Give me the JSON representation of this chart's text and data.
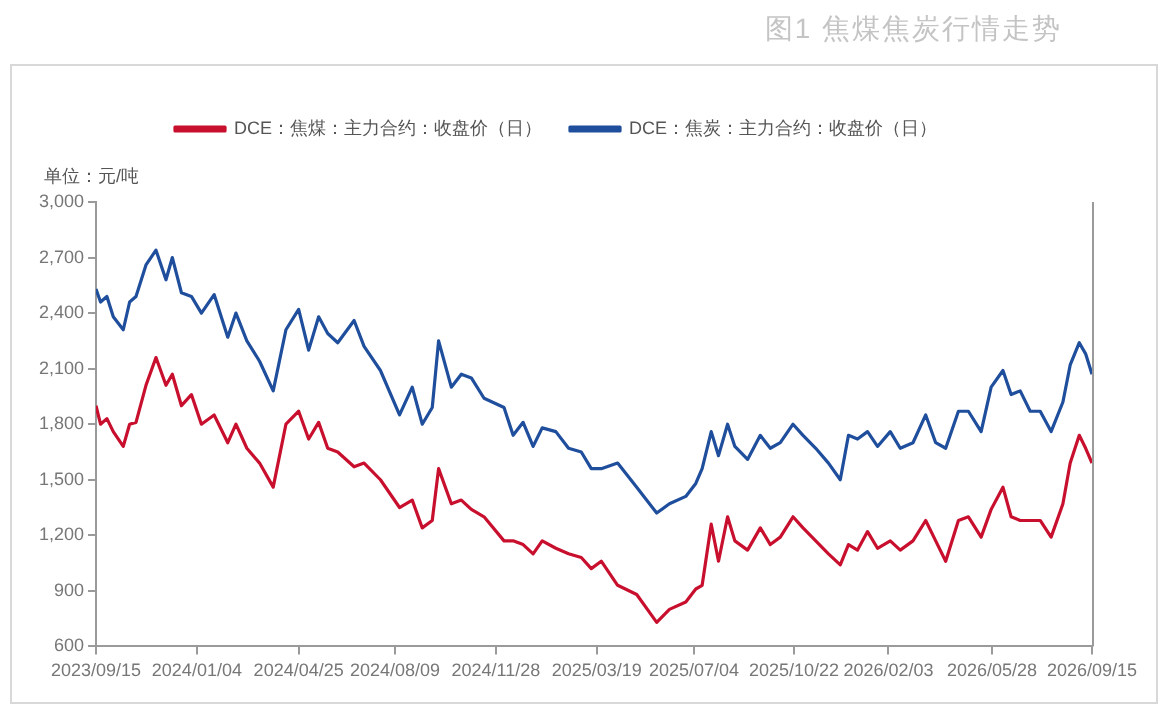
{
  "chart_data": {
    "type": "line",
    "title": "图1 焦煤焦炭行情走势",
    "ylabel": "单位：元/吨",
    "legend": "top",
    "grid": false,
    "marker": "none",
    "line_style": "solid",
    "x": [
      "2023-09-15",
      "2023-09-20",
      "2023-09-27",
      "2023-10-04",
      "2023-10-15",
      "2023-10-22",
      "2023-10-29",
      "2023-11-09",
      "2023-11-20",
      "2023-12-01",
      "2023-12-08",
      "2023-12-18",
      "2023-12-29",
      "2024-01-09",
      "2024-01-23",
      "2024-02-07",
      "2024-02-16",
      "2024-02-28",
      "2024-03-13",
      "2024-03-28",
      "2024-04-11",
      "2024-04-25",
      "2024-05-06",
      "2024-05-17",
      "2024-05-27",
      "2024-06-07",
      "2024-06-25",
      "2024-07-06",
      "2024-07-24",
      "2024-08-14",
      "2024-08-28",
      "2024-09-08",
      "2024-09-19",
      "2024-09-26",
      "2024-10-10",
      "2024-10-21",
      "2024-11-01",
      "2024-11-15",
      "2024-12-07",
      "2024-12-17",
      "2024-12-28",
      "2025-01-08",
      "2025-01-18",
      "2025-02-02",
      "2025-02-16",
      "2025-03-02",
      "2025-03-13",
      "2025-03-24",
      "2025-04-11",
      "2025-05-02",
      "2025-05-24",
      "2025-06-07",
      "2025-06-25",
      "2025-07-06",
      "2025-07-13",
      "2025-07-23",
      "2025-07-31",
      "2025-08-10",
      "2025-08-18",
      "2025-09-01",
      "2025-09-15",
      "2025-09-26",
      "2025-10-07",
      "2025-10-21",
      "2025-11-01",
      "2025-11-15",
      "2025-11-29",
      "2025-12-12",
      "2025-12-21",
      "2025-12-31",
      "2026-01-11",
      "2026-01-22",
      "2026-02-05",
      "2026-02-16",
      "2026-03-02",
      "2026-03-16",
      "2026-03-27",
      "2026-04-07",
      "2026-04-21",
      "2026-05-02",
      "2026-05-16",
      "2026-05-27",
      "2026-06-09",
      "2026-06-18",
      "2026-06-28",
      "2026-07-09",
      "2026-07-20",
      "2026-08-01",
      "2026-08-14",
      "2026-08-22",
      "2026-09-01",
      "2026-09-08",
      "2026-09-15"
    ],
    "series": [
      {
        "name": "DCE：焦煤：主力合约：收盘价（日）",
        "color": "#c8102e",
        "values": [
          1900,
          1800,
          1830,
          1760,
          1680,
          1800,
          1810,
          2010,
          2160,
          2010,
          2070,
          1900,
          1960,
          1800,
          1850,
          1700,
          1800,
          1670,
          1590,
          1460,
          1800,
          1870,
          1720,
          1810,
          1670,
          1650,
          1570,
          1590,
          1500,
          1350,
          1390,
          1240,
          1280,
          1560,
          1370,
          1390,
          1340,
          1300,
          1170,
          1170,
          1150,
          1100,
          1170,
          1130,
          1100,
          1080,
          1020,
          1060,
          930,
          880,
          730,
          800,
          840,
          910,
          930,
          1260,
          1060,
          1300,
          1170,
          1120,
          1240,
          1150,
          1190,
          1300,
          1240,
          1170,
          1100,
          1040,
          1150,
          1120,
          1220,
          1130,
          1170,
          1120,
          1170,
          1280,
          1170,
          1060,
          1280,
          1300,
          1190,
          1340,
          1460,
          1300,
          1280,
          1280,
          1280,
          1190,
          1370,
          1590,
          1740,
          1670,
          1590
        ]
      },
      {
        "name": "DCE：焦炭：主力合约：收盘价（日）",
        "color": "#1f4e9c",
        "values": [
          2530,
          2460,
          2490,
          2380,
          2310,
          2460,
          2490,
          2660,
          2740,
          2580,
          2700,
          2510,
          2490,
          2400,
          2500,
          2270,
          2400,
          2250,
          2140,
          1980,
          2310,
          2420,
          2200,
          2380,
          2290,
          2240,
          2360,
          2220,
          2090,
          1850,
          2000,
          1800,
          1890,
          2250,
          2000,
          2070,
          2050,
          1940,
          1890,
          1740,
          1810,
          1680,
          1780,
          1760,
          1670,
          1650,
          1560,
          1560,
          1590,
          1460,
          1320,
          1370,
          1410,
          1480,
          1560,
          1760,
          1630,
          1800,
          1680,
          1610,
          1740,
          1670,
          1700,
          1800,
          1740,
          1670,
          1590,
          1500,
          1740,
          1720,
          1760,
          1680,
          1760,
          1670,
          1700,
          1850,
          1700,
          1670,
          1870,
          1870,
          1760,
          2000,
          2090,
          1960,
          1980,
          1870,
          1870,
          1760,
          1920,
          2120,
          2240,
          2180,
          2070
        ]
      }
    ],
    "xlim": [
      "2023-09-15",
      "2026-09-15"
    ],
    "xticks": [
      {
        "value": "2023-09-15",
        "label": "2023/09/15"
      },
      {
        "value": "2024-01-04",
        "label": "2024/01/04"
      },
      {
        "value": "2024-04-25",
        "label": "2024/04/25"
      },
      {
        "value": "2024-08-09",
        "label": "2024/08/09"
      },
      {
        "value": "2024-11-28",
        "label": "2024/11/28"
      },
      {
        "value": "2025-03-19",
        "label": "2025/03/19"
      },
      {
        "value": "2025-07-04",
        "label": "2025/07/04"
      },
      {
        "value": "2025-10-22",
        "label": "2025/10/22"
      },
      {
        "value": "2026-02-03",
        "label": "2026/02/03"
      },
      {
        "value": "2026-05-28",
        "label": "2026/05/28"
      },
      {
        "value": "2026-09-15",
        "label": "2026/09/15"
      }
    ],
    "ylim": [
      600,
      3000
    ],
    "yticks": [
      {
        "value": 600,
        "label": "600"
      },
      {
        "value": 900,
        "label": "900"
      },
      {
        "value": 1200,
        "label": "1,200"
      },
      {
        "value": 1500,
        "label": "1,500"
      },
      {
        "value": 1800,
        "label": "1,800"
      },
      {
        "value": 2100,
        "label": "2,100"
      },
      {
        "value": 2400,
        "label": "2,400"
      },
      {
        "value": 2700,
        "label": "2,700"
      },
      {
        "value": 3000,
        "label": "3,000"
      }
    ]
  }
}
